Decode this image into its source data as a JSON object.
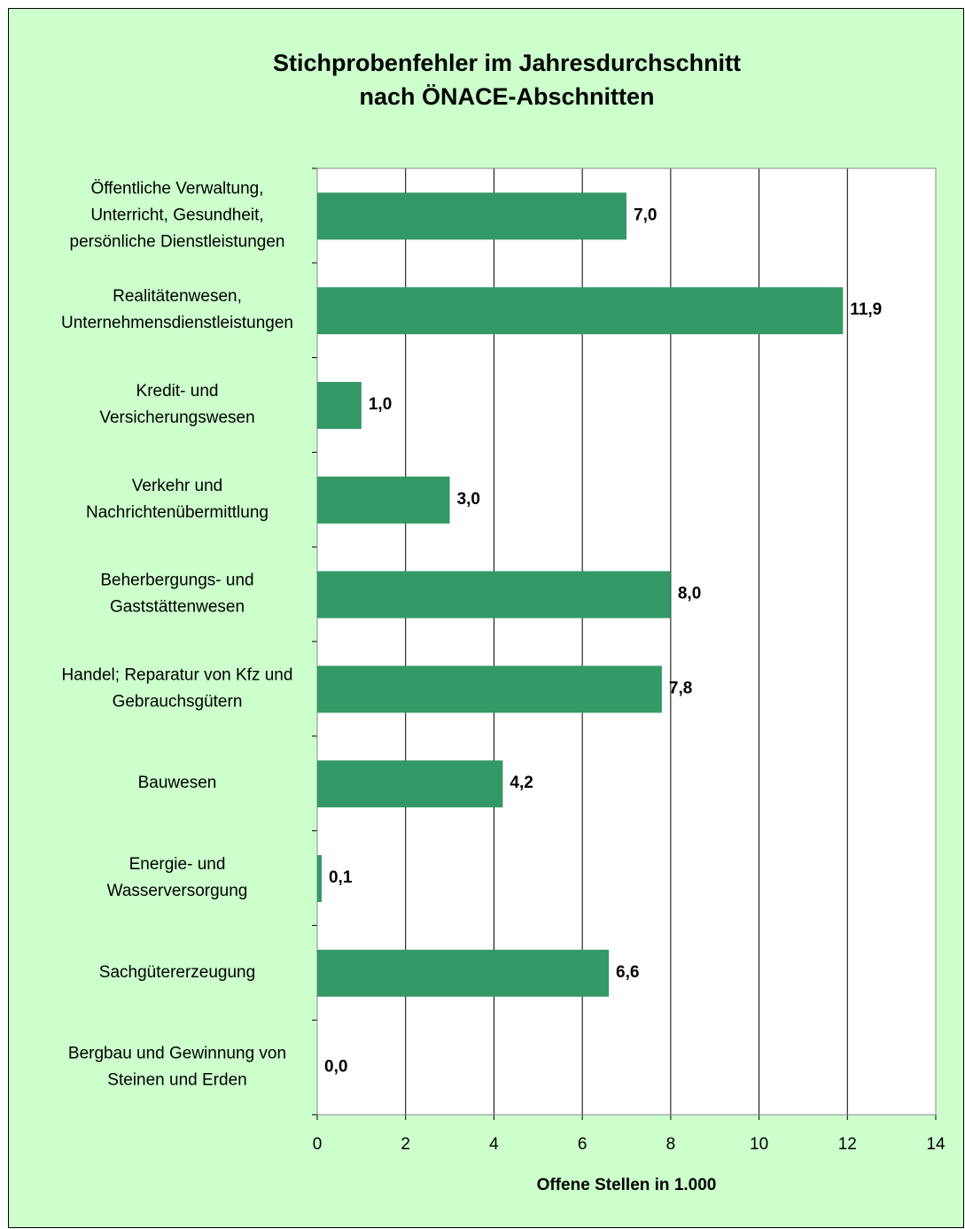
{
  "chart_data": {
    "type": "barh",
    "title": "Stichprobenfehler im Jahresdurchschnitt\nnach ÖNACE-Abschnitten",
    "categories": [
      "Öffentliche Verwaltung,\nUnterricht, Gesundheit,\npersönliche Dienstleistungen",
      "Realitätenwesen,\nUnternehmensdienstleistungen",
      "Kredit- und\nVersicherungswesen",
      "Verkehr und\nNachrichtenübermittlung",
      "Beherbergungs- und\nGaststättenwesen",
      "Handel; Reparatur von Kfz und\nGebrauchsgütern",
      "Bauwesen",
      "Energie- und\nWasserversorgung",
      "Sachgütererzeugung",
      "Bergbau und Gewinnung von\nSteinen und Erden"
    ],
    "values": [
      7.0,
      11.9,
      1.0,
      3.0,
      8.0,
      7.8,
      4.2,
      0.1,
      6.6,
      0.0
    ],
    "value_labels": [
      "7,0",
      "11,9",
      "1,0",
      "3,0",
      "8,0",
      "7,8",
      "4,2",
      "0,1",
      "6,6",
      "0,0"
    ],
    "color": "#339966",
    "xlabel": "Offene Stellen in 1.000",
    "xlim": [
      0,
      14
    ],
    "xticks": [
      0,
      2,
      4,
      6,
      8,
      10,
      12,
      14
    ],
    "grid": true
  }
}
